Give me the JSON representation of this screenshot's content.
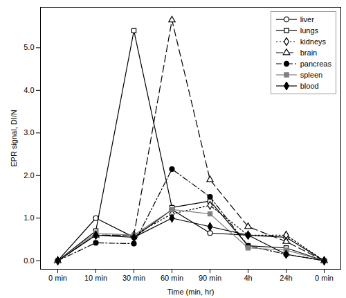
{
  "chart_data": {
    "type": "line",
    "x_label": "Time (min, hr)",
    "y_label": "EPR signal, DI/N",
    "categories": [
      "0 min",
      "10 min",
      "30 min",
      "60 min",
      "90 min",
      "4h",
      "24h",
      "0 min"
    ],
    "ylim": [
      -0.2,
      5.95
    ],
    "yticks": [
      0,
      1,
      2,
      3,
      4,
      5
    ],
    "grid": false,
    "legend": "top-right",
    "series": [
      {
        "name": "liver",
        "color": "#000000",
        "marker": "circle-open",
        "line_style": "solid",
        "values": [
          0,
          1.0,
          0.55,
          1.2,
          0.65,
          0.6,
          0.55,
          0
        ]
      },
      {
        "name": "lungs",
        "color": "#000000",
        "marker": "square-open",
        "line_style": "solid",
        "values": [
          0,
          0.7,
          5.4,
          1.25,
          1.4,
          0.35,
          0.3,
          0
        ]
      },
      {
        "name": "kidneys",
        "color": "#000000",
        "marker": "diamond-open",
        "line_style": "dotted",
        "values": [
          0,
          0.6,
          0.6,
          1.1,
          1.3,
          0.6,
          0.6,
          0
        ]
      },
      {
        "name": "brain",
        "color": "#000000",
        "marker": "triangle-open",
        "line_style": "dashed",
        "values": [
          0,
          0.6,
          0.6,
          5.65,
          1.9,
          0.8,
          0.45,
          0
        ]
      },
      {
        "name": "pancreas",
        "color": "#000000",
        "marker": "circle",
        "line_style": "dashdot",
        "values": [
          0,
          0.42,
          0.4,
          2.15,
          1.5,
          0.35,
          0.15,
          0
        ]
      },
      {
        "name": "spleen",
        "color": "#808080",
        "marker": "square",
        "line_style": "solid",
        "values": [
          0,
          0.65,
          0.6,
          1.2,
          1.1,
          0.3,
          0.25,
          0
        ]
      },
      {
        "name": "blood",
        "color": "#000000",
        "marker": "diamond",
        "line_style": "solid",
        "values": [
          0,
          0.6,
          0.55,
          1.0,
          0.8,
          0.6,
          0.15,
          0
        ]
      }
    ]
  }
}
